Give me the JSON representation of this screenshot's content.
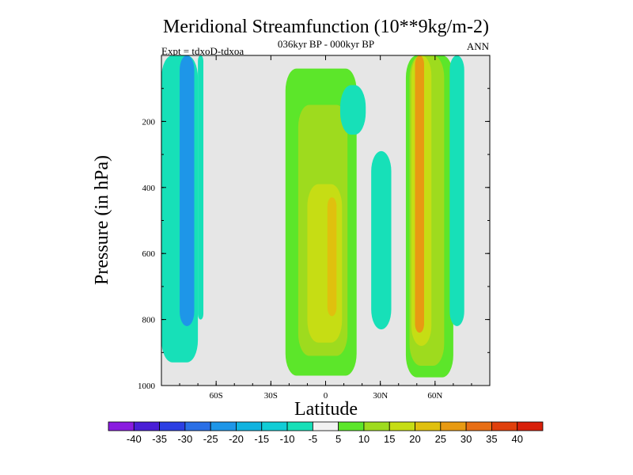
{
  "chart_data": {
    "type": "heatmap",
    "title": "Meridional Streamfunction (10**9kg/m-2)",
    "subtitle": "036kyr BP - 000kyr BP",
    "left_annotation": "Expt = tdxoD-tdxoa",
    "right_annotation": "ANN",
    "xlabel": "Latitude",
    "ylabel": "Pressure (in hPa)",
    "xlim": [
      -90,
      90
    ],
    "ylim": [
      1000,
      0
    ],
    "x_ticks": [
      {
        "value": -60,
        "label": "60S"
      },
      {
        "value": -30,
        "label": "30S"
      },
      {
        "value": 0,
        "label": "0"
      },
      {
        "value": 30,
        "label": "30N"
      },
      {
        "value": 60,
        "label": "60N"
      }
    ],
    "y_ticks": [
      {
        "value": 200,
        "label": "200"
      },
      {
        "value": 400,
        "label": "400"
      },
      {
        "value": 600,
        "label": "600"
      },
      {
        "value": 800,
        "label": "800"
      },
      {
        "value": 1000,
        "label": "1000"
      }
    ],
    "background_color": "#e6e6e6",
    "colorbar": {
      "labels": [
        "-40",
        "-35",
        "-30",
        "-25",
        "-20",
        "-15",
        "-10",
        "-5",
        "5",
        "10",
        "15",
        "20",
        "25",
        "30",
        "35",
        "40"
      ],
      "colors": [
        "#8a1ce0",
        "#4a1fd6",
        "#2c3fe3",
        "#2a6fe6",
        "#1e96e8",
        "#10b3e0",
        "#12cdd6",
        "#17e0b8",
        "#f2f2f2",
        "#5ce62a",
        "#9edb1e",
        "#c6dd14",
        "#e0c00e",
        "#e89a12",
        "#e86e14",
        "#e0400c",
        "#d8200a"
      ]
    },
    "regions": [
      {
        "value": -10,
        "color": "#17e0b8",
        "lat_range": [
          -90,
          -70
        ],
        "p_range": [
          0,
          930
        ],
        "note": "southern band"
      },
      {
        "value": -20,
        "color": "#1e96e8",
        "lat_range": [
          -80,
          -72
        ],
        "p_range": [
          0,
          820
        ]
      },
      {
        "value": -10,
        "color": "#17e0b8",
        "lat_range": [
          -70,
          -67
        ],
        "p_range": [
          0,
          800
        ]
      },
      {
        "value": 10,
        "color": "#5ce62a",
        "lat_range": [
          -22,
          17
        ],
        "p_range": [
          40,
          970
        ]
      },
      {
        "value": 15,
        "color": "#9edb1e",
        "lat_range": [
          -15,
          12
        ],
        "p_range": [
          150,
          910
        ]
      },
      {
        "value": 20,
        "color": "#c6dd14",
        "lat_range": [
          -10,
          9
        ],
        "p_range": [
          390,
          870
        ]
      },
      {
        "value": 25,
        "color": "#e0c00e",
        "lat_range": [
          1,
          6
        ],
        "p_range": [
          430,
          790
        ]
      },
      {
        "value": -10,
        "color": "#17e0b8",
        "lat_range": [
          8,
          22
        ],
        "p_range": [
          90,
          240
        ]
      },
      {
        "value": -10,
        "color": "#17e0b8",
        "lat_range": [
          25,
          36
        ],
        "p_range": [
          290,
          830
        ]
      },
      {
        "value": 10,
        "color": "#5ce62a",
        "lat_range": [
          44,
          70
        ],
        "p_range": [
          0,
          975
        ]
      },
      {
        "value": 15,
        "color": "#9edb1e",
        "lat_range": [
          46,
          65
        ],
        "p_range": [
          0,
          940
        ]
      },
      {
        "value": 20,
        "color": "#c6dd14",
        "lat_range": [
          47,
          58
        ],
        "p_range": [
          0,
          880
        ]
      },
      {
        "value": 30,
        "color": "#e89a12",
        "lat_range": [
          49,
          54
        ],
        "p_range": [
          0,
          840
        ]
      },
      {
        "value": -10,
        "color": "#17e0b8",
        "lat_range": [
          68,
          76
        ],
        "p_range": [
          0,
          820
        ]
      }
    ]
  }
}
